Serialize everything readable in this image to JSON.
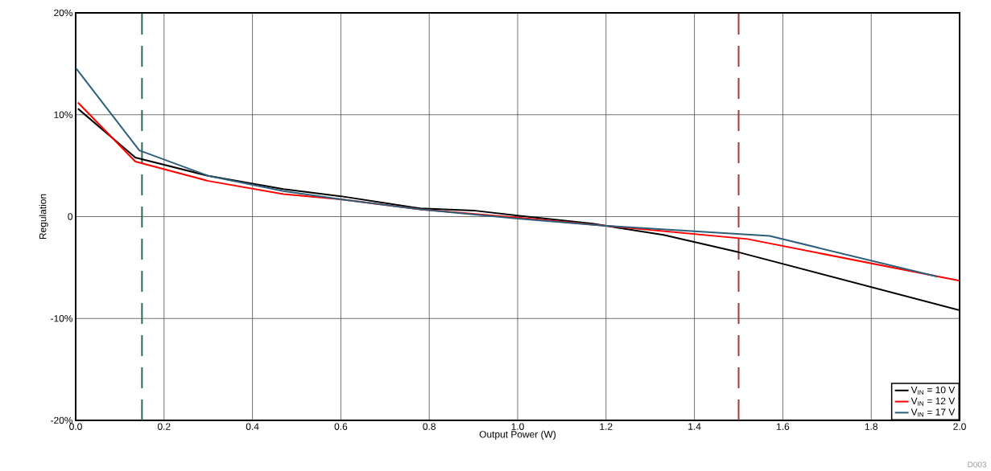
{
  "chart_data": {
    "type": "line",
    "xlabel": "Output Power (W)",
    "ylabel": "Regulation",
    "xlim": [
      0,
      2
    ],
    "xticks": [
      {
        "value": 0,
        "label": "0.0"
      },
      {
        "value": 0.2,
        "label": "0.2"
      },
      {
        "value": 0.4,
        "label": "0.4"
      },
      {
        "value": 0.6,
        "label": "0.6"
      },
      {
        "value": 0.8,
        "label": "0.8"
      },
      {
        "value": 1,
        "label": "1.0"
      },
      {
        "value": 1.2,
        "label": "1.2"
      },
      {
        "value": 1.4,
        "label": "1.4"
      },
      {
        "value": 1.6,
        "label": "1.6"
      },
      {
        "value": 1.8,
        "label": "1.8"
      },
      {
        "value": 2,
        "label": "2.0"
      }
    ],
    "ylim": [
      -20,
      20
    ],
    "yticks": [
      {
        "value": -20,
        "label": "-20%"
      },
      {
        "value": -10,
        "label": "-10%"
      },
      {
        "value": 0,
        "label": "0"
      },
      {
        "value": 10,
        "label": "10%"
      },
      {
        "value": 20,
        "label": "20%"
      }
    ],
    "grid": true,
    "legend": "bottom right",
    "marker": "none",
    "line_style": "solid",
    "series": [
      {
        "name": "V$_{IN}$ = 10 V",
        "color": "#000000",
        "x": [
          0.005,
          0.135,
          0.3,
          0.47,
          0.6,
          0.78,
          0.9,
          1.0,
          1.17,
          1.33,
          1.5,
          2.0
        ],
        "values": [
          10.6,
          5.8,
          4.0,
          2.7,
          2.0,
          0.8,
          0.6,
          0.1,
          -0.7,
          -1.8,
          -3.5,
          -9.2
        ]
      },
      {
        "name": "V$_{IN}$ = 12 V",
        "color": "#ff0000",
        "x": [
          0.005,
          0.135,
          0.3,
          0.47,
          0.6,
          0.78,
          1.0,
          1.2,
          1.52,
          2.0
        ],
        "values": [
          11.2,
          5.4,
          3.5,
          2.2,
          1.7,
          0.7,
          -0.1,
          -0.9,
          -2.2,
          -6.3
        ]
      },
      {
        "name": "V$_{IN}$ = 17 V",
        "color": "#2e5f7a",
        "x": [
          0.0,
          0.144,
          0.3,
          0.47,
          0.6,
          0.78,
          1.0,
          1.2,
          1.57,
          1.95
        ],
        "values": [
          14.6,
          6.5,
          4.0,
          2.5,
          1.7,
          0.7,
          -0.2,
          -0.9,
          -1.9,
          -5.9
        ]
      }
    ],
    "ref_lines": [
      {
        "axis": "x",
        "value": 0.15,
        "color": "#2e6b4f",
        "line_style": "dashed"
      },
      {
        "axis": "x",
        "value": 1.5,
        "color": "#a03c3c",
        "line_style": "dashed"
      }
    ],
    "annotations": [
      "D003"
    ]
  }
}
